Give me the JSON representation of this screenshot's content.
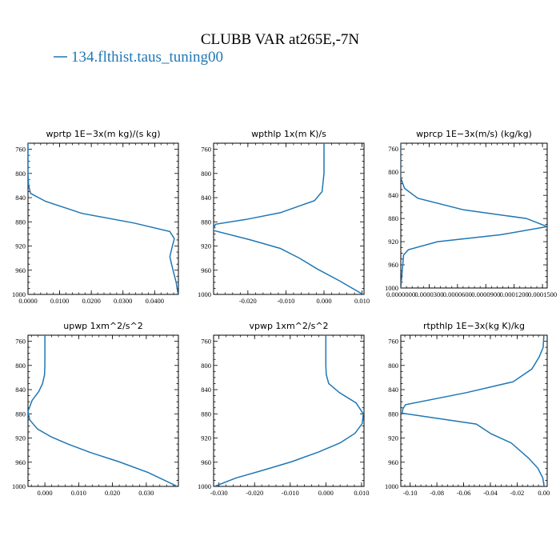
{
  "figure": {
    "title": "CLUBB VAR at265E,-7N",
    "legend_label": "134.flthist.taus_tuning00",
    "line_color": "#1f77b4"
  },
  "chart_data": [
    {
      "type": "line",
      "title": "wprtp   1E−3x(m kg)/(s kg)",
      "ylim": [
        1000,
        750
      ],
      "yticks": [
        760,
        800,
        840,
        880,
        920,
        960,
        1000
      ],
      "xlim": [
        0.0,
        0.0475
      ],
      "xticks": [
        0.0,
        0.01,
        0.02,
        0.03,
        0.04
      ],
      "xtick_labels": [
        "0.0000",
        "0.0100",
        "0.0200",
        "0.0300",
        "0.0400"
      ],
      "x": [
        0.0,
        0.0,
        0.0002,
        0.0008,
        0.0055,
        0.017,
        0.0335,
        0.0448,
        0.0462,
        0.0455,
        0.0448,
        0.0458,
        0.0468,
        0.0474
      ],
      "y": [
        750,
        800,
        820,
        833,
        846,
        866,
        882,
        896,
        908,
        922,
        938,
        960,
        980,
        1000
      ]
    },
    {
      "type": "line",
      "title": "wpthlp   1x(m K)/s",
      "ylim": [
        1000,
        750
      ],
      "yticks": [
        760,
        800,
        840,
        880,
        920,
        960,
        1000
      ],
      "xlim": [
        -0.029,
        0.0105
      ],
      "xticks": [
        -0.02,
        -0.01,
        0.0,
        0.01
      ],
      "xtick_labels": [
        "-0.020",
        "-0.010",
        "0.000",
        "0.010"
      ],
      "x": [
        0.0,
        0.0,
        -0.0005,
        -0.0025,
        -0.0115,
        -0.0205,
        -0.0285,
        -0.0292,
        -0.0192,
        -0.0115,
        -0.0065,
        -0.0018,
        0.0042,
        0.0102
      ],
      "y": [
        750,
        800,
        830,
        845,
        865,
        876,
        884,
        894,
        910,
        924,
        940,
        958,
        978,
        1000
      ]
    },
    {
      "type": "line",
      "title": "wprcp   1E−3x(m/s) (kg/kg)",
      "ylim": [
        1000,
        750
      ],
      "yticks": [
        760,
        800,
        840,
        880,
        920,
        960,
        1000
      ],
      "xlim": [
        0.0,
        0.000155
      ],
      "xticks": [
        0.0,
        3e-05,
        6e-05,
        9e-05,
        0.00012,
        0.00015
      ],
      "xtick_labels": [
        "0.0000000",
        "0.0000300",
        "0.0000600",
        "0.0000900",
        "0.0001200",
        "0.0001500"
      ],
      "x": [
        0.0,
        0.0,
        4e-06,
        1.8e-05,
        6.65e-05,
        0.000133,
        0.000155,
        0.000106,
        3.9e-05,
        8e-06,
        3e-06,
        0.0
      ],
      "y": [
        750,
        810,
        828,
        845,
        865,
        880,
        894,
        908,
        920,
        934,
        943,
        1000
      ]
    },
    {
      "type": "line",
      "title": "upwp   1xm^2/s^2",
      "ylim": [
        1000,
        750
      ],
      "yticks": [
        760,
        800,
        840,
        880,
        920,
        960,
        1000
      ],
      "xlim": [
        -0.005,
        0.0395
      ],
      "xticks": [
        0.0,
        0.01,
        0.02,
        0.03
      ],
      "xtick_labels": [
        "0.000",
        "0.010",
        "0.020",
        "0.030"
      ],
      "x": [
        0.0,
        0.0,
        -0.0001,
        -0.0007,
        -0.0018,
        -0.0038,
        -0.005,
        -0.0045,
        -0.0022,
        0.0018,
        0.0068,
        0.0135,
        0.0218,
        0.0305,
        0.0392
      ],
      "y": [
        750,
        800,
        815,
        830,
        843,
        858,
        876,
        890,
        905,
        918,
        930,
        944,
        959,
        977,
        1000
      ]
    },
    {
      "type": "line",
      "title": "vpwp   1xm^2/s^2",
      "ylim": [
        1000,
        750
      ],
      "yticks": [
        760,
        800,
        840,
        880,
        920,
        960,
        1000
      ],
      "xlim": [
        -0.0315,
        0.0107
      ],
      "xticks": [
        -0.03,
        -0.02,
        -0.01,
        0.0,
        0.01
      ],
      "xtick_labels": [
        "-0.030",
        "-0.020",
        "-0.010",
        "0.000",
        "0.010"
      ],
      "x": [
        0.0,
        0.0,
        0.0001,
        0.0008,
        0.0038,
        0.0085,
        0.0105,
        0.0102,
        0.0082,
        0.004,
        -0.002,
        -0.0095,
        -0.0175,
        -0.0252,
        -0.0312
      ],
      "y": [
        750,
        800,
        815,
        830,
        845,
        862,
        880,
        896,
        912,
        928,
        943,
        959,
        973,
        986,
        1000
      ]
    },
    {
      "type": "line",
      "title": "rtpthlp   1E−3x(kg K)/kg",
      "ylim": [
        1000,
        750
      ],
      "yticks": [
        760,
        800,
        840,
        880,
        920,
        960,
        1000
      ],
      "xlim": [
        -0.107,
        0.0025
      ],
      "xticks": [
        -0.1,
        -0.08,
        -0.06,
        -0.04,
        -0.02,
        0.0
      ],
      "xtick_labels": [
        "-0.10",
        "-0.08",
        "-0.06",
        "-0.04",
        "-0.02",
        "0.00"
      ],
      "x": [
        0.0,
        -0.0005,
        -0.0035,
        -0.009,
        -0.023,
        -0.058,
        -0.1035,
        -0.1055,
        -0.106,
        -0.0505,
        -0.0395,
        -0.0245,
        -0.0115,
        -0.0045,
        -0.0008,
        0.0002
      ],
      "y": [
        750,
        770,
        786,
        806,
        827,
        845,
        865,
        872,
        879,
        897,
        913,
        928,
        953,
        970,
        986,
        1000
      ]
    }
  ]
}
